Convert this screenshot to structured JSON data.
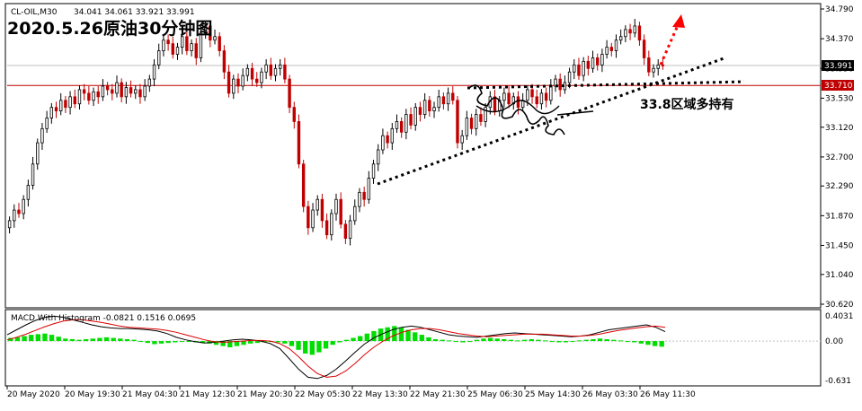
{
  "chart_data": {
    "type": "candlestick",
    "symbol_label": "CL-OIL,M30",
    "ohlc_header": "34.041 34.061 33.921 33.991",
    "title": "2020.5.26原油30分钟图",
    "annotation": "33.8区域多持有",
    "price_axis": {
      "min": 30.62,
      "max": 34.79,
      "ticks": [
        "34.790",
        "34.370",
        "33.950",
        "33.530",
        "33.120",
        "32.700",
        "32.290",
        "31.870",
        "31.450",
        "31.040",
        "30.620"
      ]
    },
    "current_price": {
      "label": "33.991",
      "value": 33.991
    },
    "resistance_line": {
      "label": "33.710",
      "value": 33.71
    },
    "time_labels": [
      "20 May 2020",
      "20 May 19:30",
      "21 May 04:30",
      "21 May 12:30",
      "21 May 20:30",
      "22 May 05:30",
      "22 May 13:30",
      "22 May 21:30",
      "25 May 06:30",
      "25 May 14:30",
      "26 May 03:30",
      "26 May 11:30"
    ],
    "candles_close": [
      31.8,
      31.95,
      31.9,
      32.1,
      32.3,
      32.6,
      32.9,
      33.1,
      33.25,
      33.4,
      33.35,
      33.5,
      33.4,
      33.55,
      33.45,
      33.65,
      33.6,
      33.5,
      33.62,
      33.55,
      33.7,
      33.65,
      33.6,
      33.75,
      33.55,
      33.68,
      33.6,
      33.65,
      33.55,
      33.7,
      33.8,
      34.0,
      34.2,
      34.35,
      34.3,
      34.15,
      34.25,
      34.4,
      34.2,
      34.3,
      34.1,
      34.45,
      34.55,
      34.35,
      34.4,
      34.2,
      33.9,
      33.6,
      33.8,
      33.7,
      33.85,
      33.95,
      33.8,
      33.75,
      33.9,
      34.0,
      33.85,
      33.95,
      34.0,
      33.8,
      33.4,
      33.2,
      32.6,
      32.0,
      31.7,
      31.95,
      32.1,
      31.8,
      31.6,
      31.9,
      32.1,
      31.75,
      31.55,
      31.8,
      32.0,
      32.2,
      32.1,
      32.4,
      32.6,
      32.8,
      33.0,
      32.9,
      33.1,
      33.2,
      33.05,
      33.3,
      33.15,
      33.4,
      33.3,
      33.5,
      33.35,
      33.4,
      33.55,
      33.45,
      33.6,
      33.5,
      32.9,
      33.0,
      33.25,
      33.1,
      33.3,
      33.2,
      33.4,
      33.55,
      33.35,
      33.5,
      33.6,
      33.45,
      33.55,
      33.4,
      33.5,
      33.65,
      33.55,
      33.45,
      33.6,
      33.5,
      33.7,
      33.8,
      33.65,
      33.75,
      33.9,
      34.0,
      33.85,
      34.05,
      33.95,
      34.1,
      34.0,
      34.15,
      34.25,
      34.2,
      34.35,
      34.4,
      34.5,
      34.45,
      34.55,
      34.35,
      34.1,
      33.9,
      33.95,
      34.0,
      33.991
    ],
    "macd": {
      "label": "MACD With Histogram -0.0821 0.1516 0.0695",
      "axis_ticks": [
        "0.4031",
        "0.00",
        "-0.631"
      ],
      "min": -0.631,
      "max": 0.4031,
      "histogram": [
        0.05,
        0.06,
        0.08,
        0.1,
        0.11,
        0.12,
        0.1,
        0.07,
        0.04,
        0.03,
        0.02,
        0.03,
        0.04,
        0.05,
        0.06,
        0.05,
        0.04,
        0.03,
        0.02,
        -0.01,
        -0.03,
        -0.05,
        -0.04,
        -0.03,
        -0.02,
        -0.01,
        0.0,
        -0.02,
        -0.03,
        -0.04,
        -0.06,
        -0.08,
        -0.1,
        -0.08,
        -0.06,
        -0.04,
        -0.03,
        -0.02,
        -0.01,
        -0.02,
        -0.04,
        -0.08,
        -0.14,
        -0.2,
        -0.22,
        -0.18,
        -0.12,
        -0.06,
        -0.02,
        0.02,
        0.05,
        0.08,
        0.12,
        0.16,
        0.2,
        0.22,
        0.24,
        0.22,
        0.18,
        0.14,
        0.1,
        0.06,
        0.03,
        0.02,
        0.01,
        -0.01,
        -0.02,
        -0.01,
        0.02,
        0.04,
        0.05,
        0.04,
        0.03,
        0.02,
        0.01,
        0.02,
        0.03,
        0.02,
        0.01,
        -0.01,
        -0.02,
        -0.02,
        -0.01,
        0.01,
        0.02,
        0.03,
        0.04,
        0.03,
        0.02,
        0.01,
        0.0,
        -0.02,
        -0.04,
        -0.06,
        -0.08,
        -0.09
      ],
      "macd_line": [
        0.1,
        0.18,
        0.26,
        0.33,
        0.38,
        0.4,
        0.38,
        0.34,
        0.3,
        0.26,
        0.23,
        0.21,
        0.2,
        0.2,
        0.19,
        0.18,
        0.16,
        0.12,
        0.06,
        0.02,
        -0.01,
        -0.03,
        -0.02,
        0.0,
        0.02,
        0.03,
        0.02,
        0.0,
        -0.04,
        -0.12,
        -0.28,
        -0.45,
        -0.58,
        -0.6,
        -0.55,
        -0.45,
        -0.32,
        -0.18,
        -0.05,
        0.05,
        0.12,
        0.18,
        0.22,
        0.24,
        0.22,
        0.18,
        0.14,
        0.1,
        0.08,
        0.07,
        0.06,
        0.08,
        0.1,
        0.12,
        0.13,
        0.12,
        0.11,
        0.1,
        0.09,
        0.08,
        0.07,
        0.08,
        0.1,
        0.14,
        0.18,
        0.2,
        0.22,
        0.24,
        0.26,
        0.22,
        0.15
      ],
      "signal_line": [
        0.02,
        0.06,
        0.11,
        0.17,
        0.23,
        0.28,
        0.32,
        0.34,
        0.34,
        0.32,
        0.3,
        0.27,
        0.24,
        0.22,
        0.21,
        0.2,
        0.19,
        0.17,
        0.14,
        0.1,
        0.06,
        0.02,
        -0.01,
        -0.02,
        -0.01,
        0.0,
        0.01,
        0.01,
        0.0,
        -0.04,
        -0.12,
        -0.25,
        -0.4,
        -0.52,
        -0.58,
        -0.56,
        -0.48,
        -0.36,
        -0.22,
        -0.1,
        0.0,
        0.08,
        0.14,
        0.18,
        0.2,
        0.2,
        0.18,
        0.15,
        0.12,
        0.1,
        0.08,
        0.07,
        0.08,
        0.09,
        0.1,
        0.11,
        0.11,
        0.11,
        0.1,
        0.09,
        0.08,
        0.08,
        0.09,
        0.11,
        0.14,
        0.17,
        0.19,
        0.21,
        0.23,
        0.24,
        0.22
      ]
    },
    "colors": {
      "bull": "#000000",
      "bear": "#c00000",
      "resistance": "#c00000",
      "histogram": "#00dd00",
      "macd_line": "#000000",
      "signal_line": "#dd0000",
      "arrow": "#ff0000",
      "label_bg": "#000000",
      "resistance_bg": "#c00000"
    }
  }
}
